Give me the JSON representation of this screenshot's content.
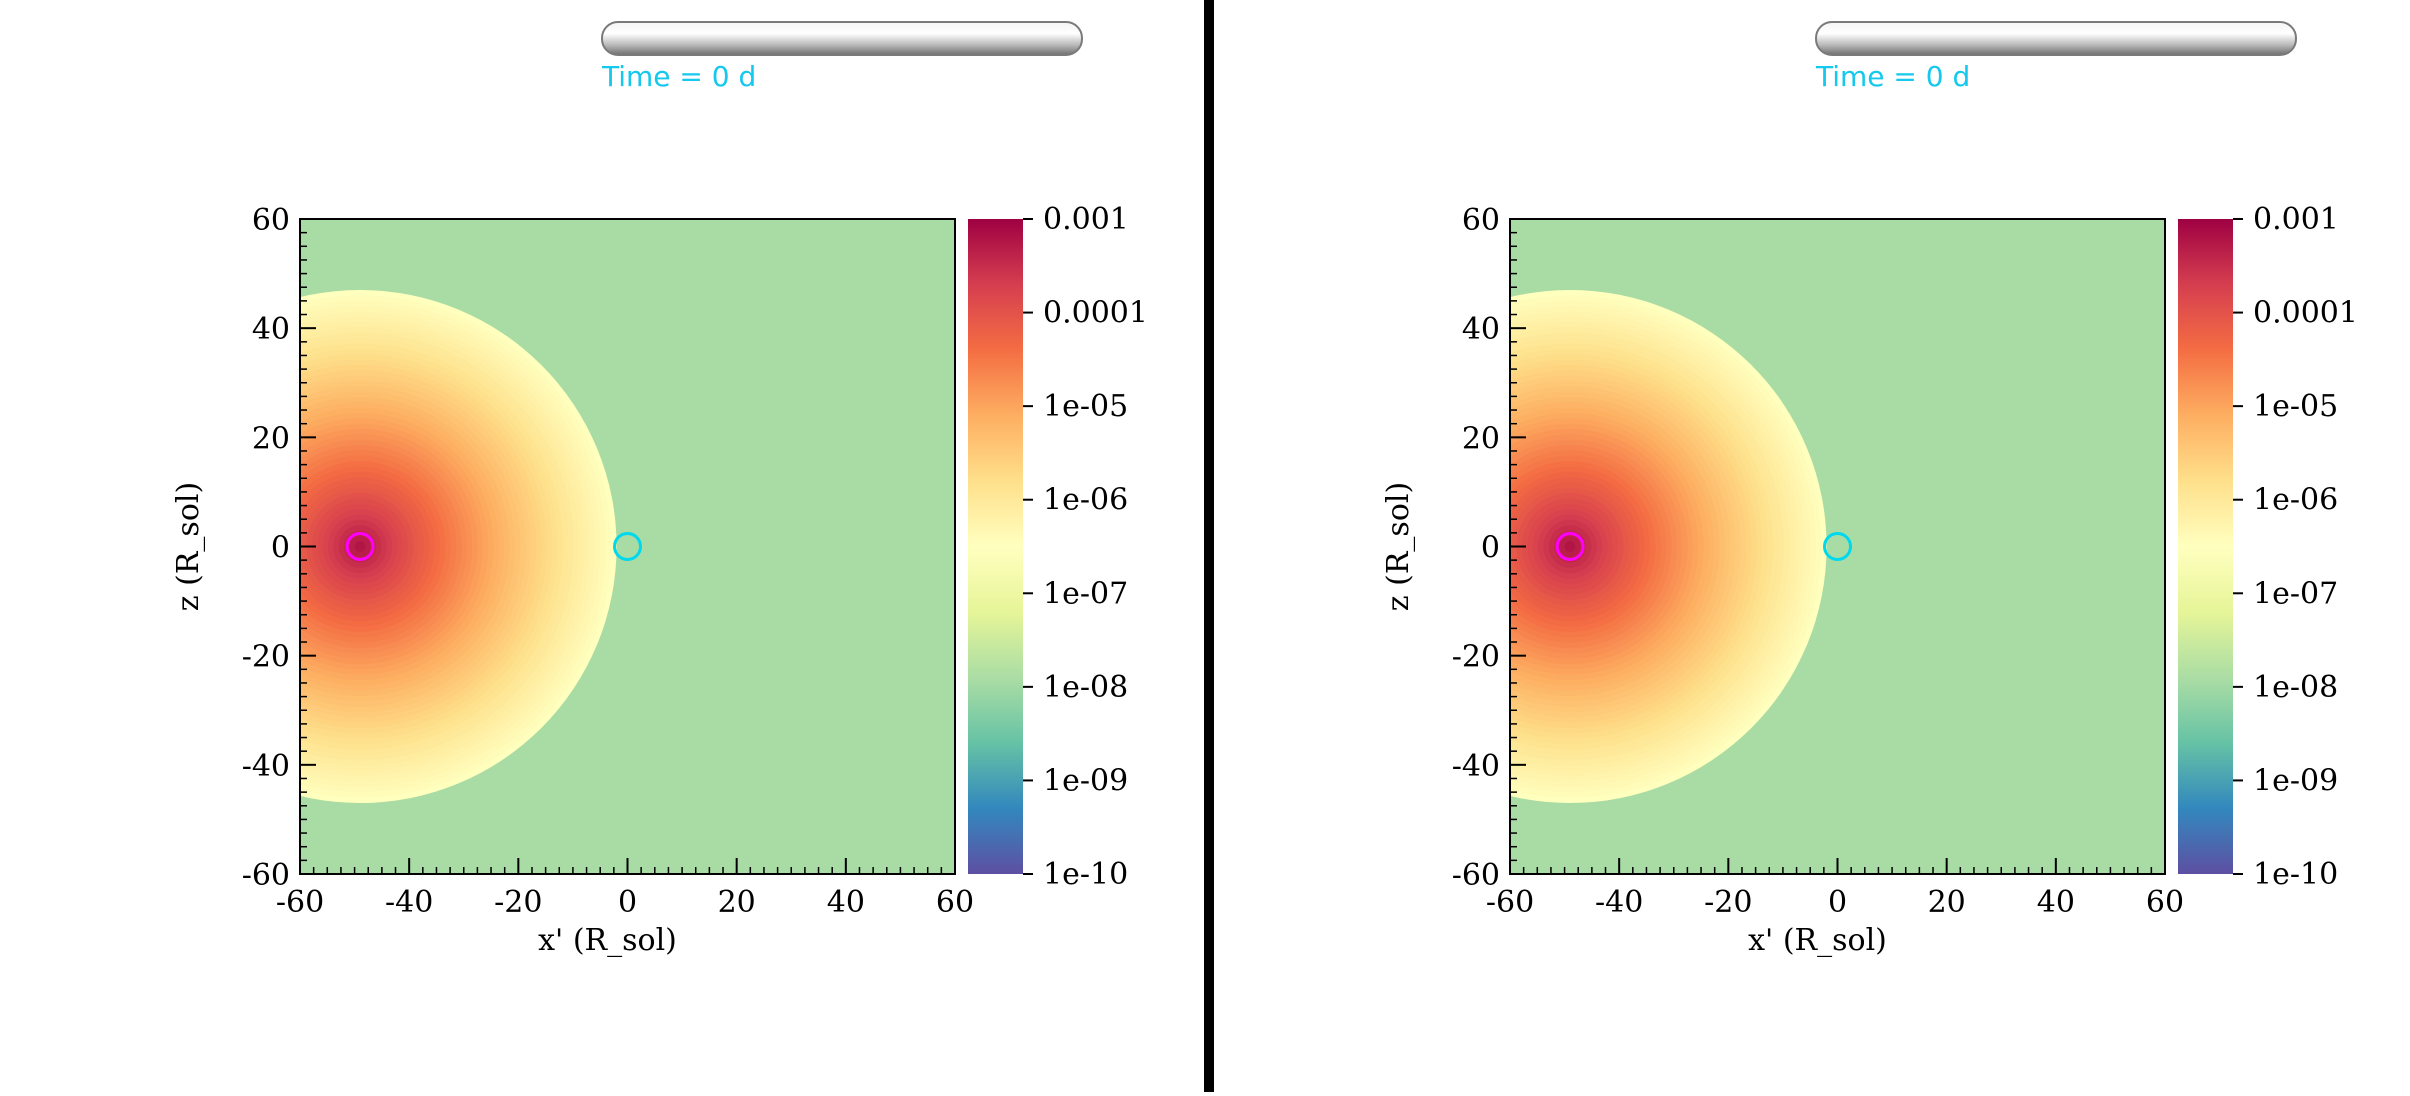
{
  "colors": {
    "background_value": "#8dd1a3",
    "star_marker": "#ff00ff",
    "companion_marker": "#00d8ee",
    "time_label": "#14c8ee",
    "divider": "#000000"
  },
  "panels": [
    {
      "time_label": "Time = 0 d",
      "slider_value": 0,
      "chart_data": {
        "type": "heatmap",
        "title": "",
        "xlabel": "x' (R_sol)",
        "ylabel": "z (R_sol)",
        "xlim": [
          -60,
          60
        ],
        "ylim": [
          -60,
          60
        ],
        "x_ticks": [
          "-60",
          "-40",
          "-20",
          "0",
          "20",
          "40",
          "60"
        ],
        "y_ticks": [
          "60",
          "40",
          "20",
          "0",
          "-20",
          "-40",
          "-60"
        ],
        "colorbar": {
          "scale": "log",
          "range": [
            1e-10,
            0.001
          ],
          "tick_labels": [
            "0.001",
            "0.0001",
            "1e-05",
            "1e-06",
            "1e-07",
            "1e-08",
            "1e-09",
            "1e-10"
          ],
          "colormap": "Spectral_r"
        },
        "field": {
          "center_x": -49,
          "center_z": 0,
          "outer_radius": 47,
          "center_value": 0.0007,
          "edge_value": 3e-07,
          "ambient_value": 1.2e-08
        },
        "markers": [
          {
            "name": "star",
            "x": -49,
            "z": 0,
            "color": "#ff00ff"
          },
          {
            "name": "companion",
            "x": 0,
            "z": 0,
            "color": "#00d8ee"
          }
        ]
      }
    },
    {
      "time_label": "Time = 0 d",
      "slider_value": 0,
      "chart_data": {
        "type": "heatmap",
        "title": "",
        "xlabel": "x' (R_sol)",
        "ylabel": "z (R_sol)",
        "xlim": [
          -60,
          60
        ],
        "ylim": [
          -60,
          60
        ],
        "x_ticks": [
          "-60",
          "-40",
          "-20",
          "0",
          "20",
          "40",
          "60"
        ],
        "y_ticks": [
          "60",
          "40",
          "20",
          "0",
          "-20",
          "-40",
          "-60"
        ],
        "colorbar": {
          "scale": "log",
          "range": [
            1e-10,
            0.001
          ],
          "tick_labels": [
            "0.001",
            "0.0001",
            "1e-05",
            "1e-06",
            "1e-07",
            "1e-08",
            "1e-09",
            "1e-10"
          ],
          "colormap": "Spectral_r"
        },
        "field": {
          "center_x": -49,
          "center_z": 0,
          "outer_radius": 47,
          "center_value": 0.0007,
          "edge_value": 3e-07,
          "ambient_value": 1.2e-08
        },
        "markers": [
          {
            "name": "star",
            "x": -49,
            "z": 0,
            "color": "#ff00ff"
          },
          {
            "name": "companion",
            "x": 0,
            "z": 0,
            "color": "#00d8ee"
          }
        ]
      }
    }
  ]
}
